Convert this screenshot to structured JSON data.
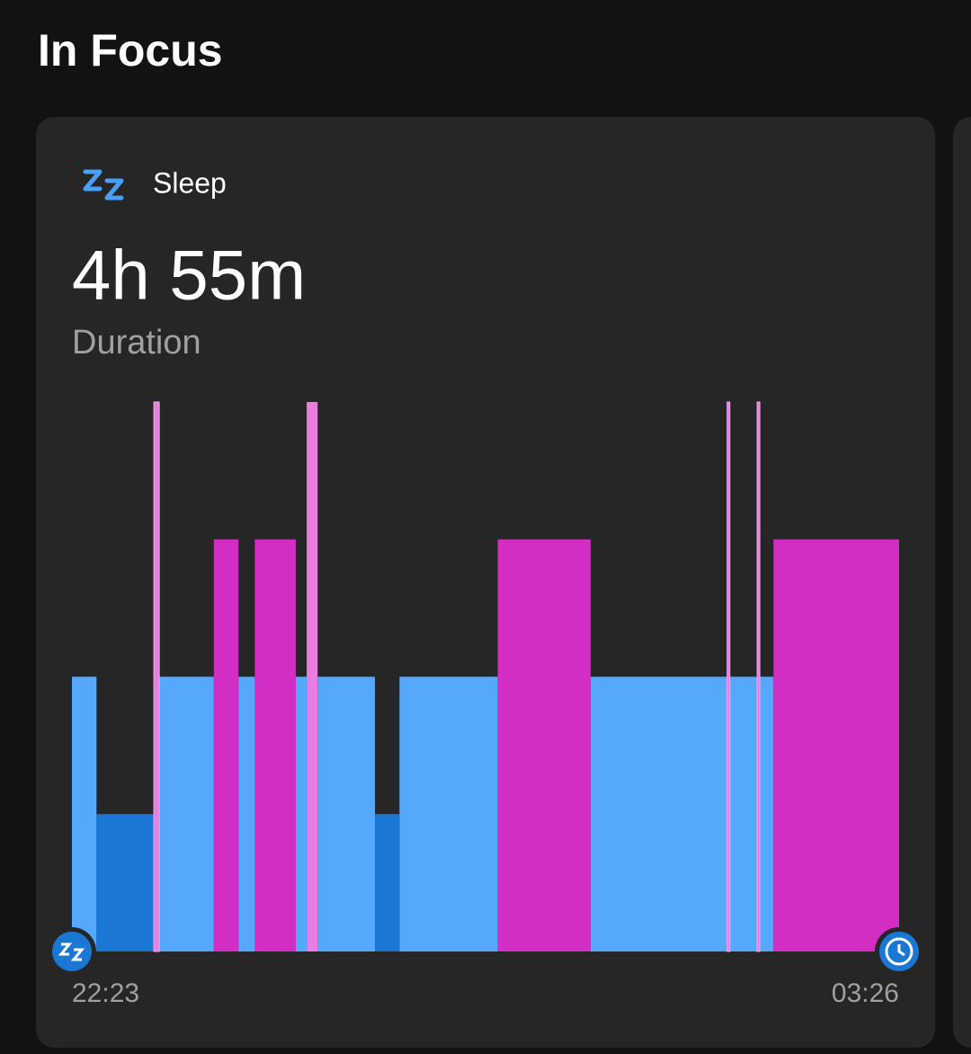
{
  "header": {
    "title": "In Focus"
  },
  "card": {
    "title": "Sleep",
    "value": "4h 55m",
    "label": "Duration"
  },
  "chart_data": {
    "type": "step",
    "xlim": [
      0,
      303
    ],
    "xticks": [
      {
        "value": 0,
        "label": "22:23"
      },
      {
        "value": 303,
        "label": "03:26"
      }
    ],
    "ylim": [
      0,
      4
    ],
    "series": [
      {
        "color": "#55a8fb",
        "value": 2,
        "segments": [
          [
            0,
            9
          ],
          [
            32,
            52
          ],
          [
            61,
            67
          ],
          [
            82,
            86
          ],
          [
            90,
            111
          ],
          [
            120,
            156
          ],
          [
            190,
            240
          ],
          [
            241,
            251
          ],
          [
            252,
            257
          ]
        ]
      },
      {
        "color": "#1a78d4",
        "value": 1,
        "segments": [
          [
            9,
            30
          ],
          [
            111,
            120
          ]
        ]
      },
      {
        "color": "#d22ec4",
        "value": 3,
        "segments": [
          [
            52,
            61
          ],
          [
            67,
            82
          ],
          [
            156,
            190
          ],
          [
            257,
            303
          ]
        ]
      },
      {
        "color": "#e87ee0",
        "value": 4,
        "segments": [
          [
            30,
            32
          ],
          [
            86,
            90
          ],
          [
            240,
            241
          ],
          [
            251,
            252
          ]
        ]
      }
    ]
  }
}
